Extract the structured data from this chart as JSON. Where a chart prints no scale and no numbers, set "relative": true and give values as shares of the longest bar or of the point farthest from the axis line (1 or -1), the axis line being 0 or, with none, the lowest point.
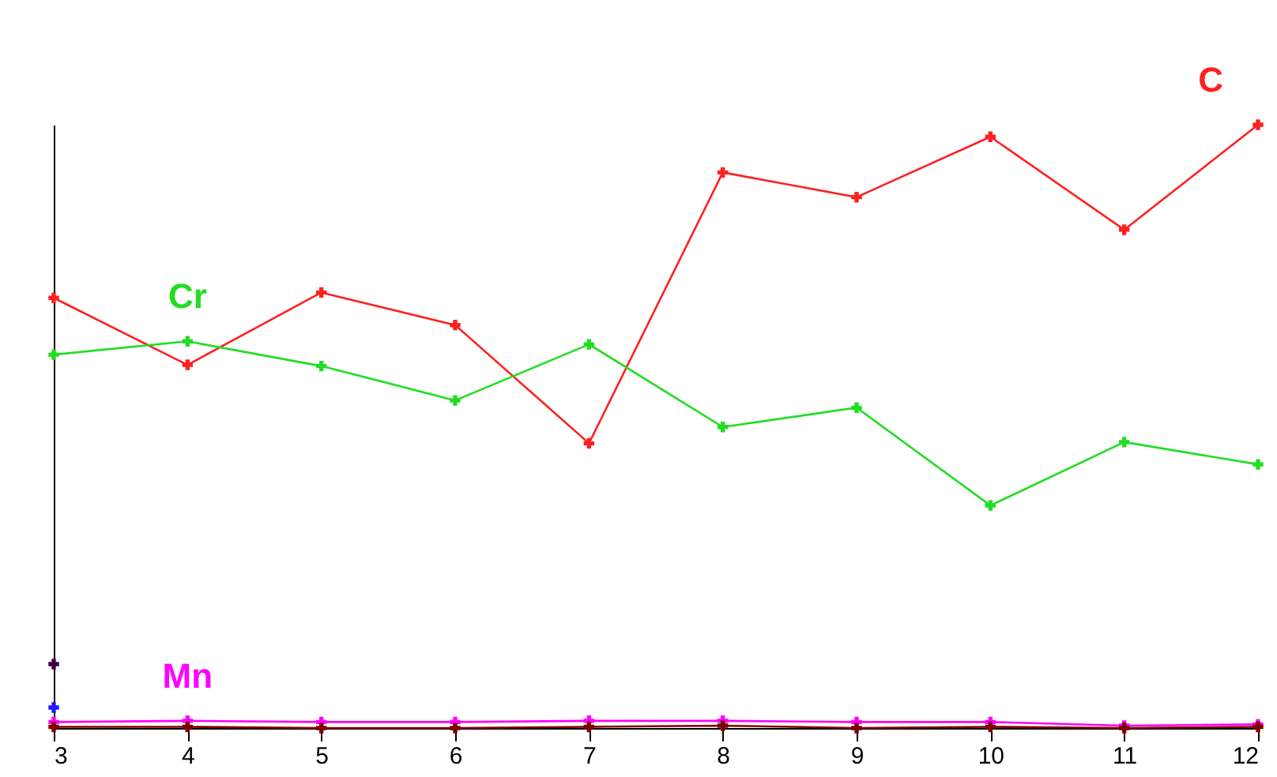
{
  "chart_data": {
    "type": "line",
    "relative": true,
    "x": [
      3,
      4,
      5,
      6,
      7,
      8,
      9,
      10,
      11,
      12
    ],
    "xlim": [
      3,
      12
    ],
    "xticks": [
      3,
      4,
      5,
      6,
      7,
      8,
      9,
      10,
      11,
      12
    ],
    "grid": false,
    "marker": "cross",
    "line_style": "solid",
    "series": [
      {
        "name": "C",
        "color": "#ff2020",
        "values": [
          0.713,
          0.602,
          0.722,
          0.668,
          0.472,
          0.921,
          0.88,
          0.98,
          0.826,
          1
        ]
      },
      {
        "name": "Cr",
        "color": "#22dd22",
        "values": [
          0.619,
          0.641,
          0.6,
          0.543,
          0.636,
          0.499,
          0.531,
          0.369,
          0.474,
          0.437
        ]
      },
      {
        "name": "Mn",
        "color": "#ff00ff",
        "values": [
          0.01,
          0.012,
          0.01,
          0.01,
          0.012,
          0.012,
          0.01,
          0.01,
          0.004,
          0.006
        ]
      },
      {
        "color": "#800000",
        "values": [
          0.002,
          0.002,
          0.0,
          0.0,
          0.002,
          0.004,
          0.0,
          0.002,
          0.0,
          0.002
        ]
      },
      {
        "type": "scatter",
        "color": "#1a1aff",
        "x": [
          3
        ],
        "values": [
          0.034
        ]
      },
      {
        "type": "scatter",
        "color": "#400040",
        "x": [
          3
        ],
        "values": [
          0.106
        ]
      }
    ]
  }
}
